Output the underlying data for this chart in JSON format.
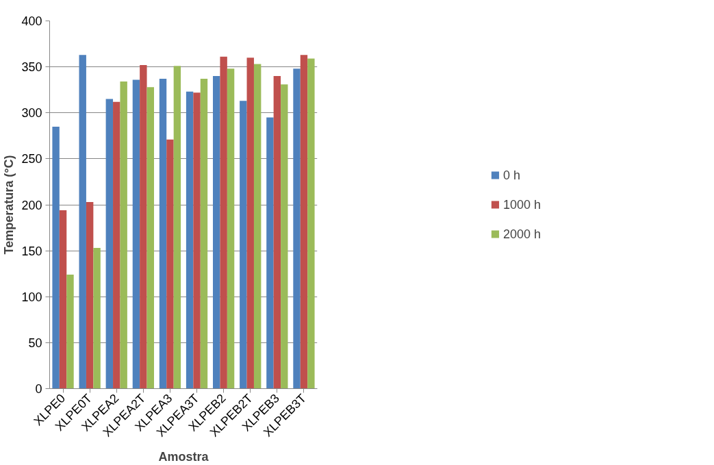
{
  "chart_data": {
    "type": "bar",
    "xlabel": "Amostra",
    "ylabel": "Temperatura (°C)",
    "categories": [
      "XLPE0",
      "XLPE0T",
      "XLPEA2",
      "XLPEA2T",
      "XLPEA3",
      "XLPEA3T",
      "XLPEB2",
      "XLPEB2T",
      "XLPEB3",
      "XLPEB3T"
    ],
    "series": [
      {
        "name": "0 h",
        "color": "#4f81bd",
        "values": [
          285,
          363,
          315,
          336,
          337,
          323,
          340,
          313,
          295,
          348
        ]
      },
      {
        "name": "1000 h",
        "color": "#c0504d",
        "values": [
          194,
          203,
          312,
          352,
          271,
          322,
          361,
          360,
          340,
          363
        ]
      },
      {
        "name": "2000 h",
        "color": "#9bbb59",
        "values": [
          124,
          153,
          334,
          328,
          351,
          337,
          348,
          353,
          331,
          359
        ]
      }
    ],
    "ylim": [
      0,
      400
    ],
    "yticks": [
      0,
      50,
      100,
      150,
      200,
      250,
      300,
      350,
      400
    ],
    "grid": "y",
    "legend": "right"
  }
}
